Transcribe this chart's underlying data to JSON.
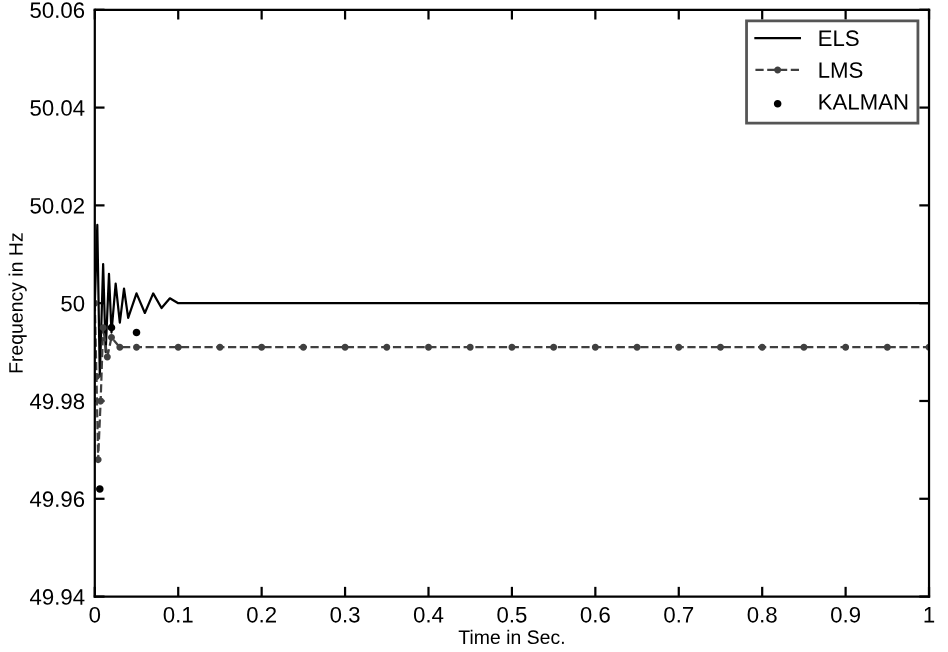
{
  "chart_data": {
    "type": "line",
    "xlabel": "Time in Sec.",
    "ylabel": "Frequency in Hz",
    "xlim": [
      0,
      1
    ],
    "ylim": [
      49.94,
      50.06
    ],
    "xticks": [
      0,
      0.1,
      0.2,
      0.3,
      0.4,
      0.5,
      0.6,
      0.7,
      0.8,
      0.9,
      1
    ],
    "yticks": [
      49.94,
      49.96,
      49.98,
      50,
      50.02,
      50.04,
      50.06
    ],
    "grid": false,
    "legend": "top right",
    "series": [
      {
        "name": "ELS",
        "color": "#000000",
        "line_style": "solid",
        "marker": "none",
        "x": [
          0,
          0.003,
          0.006,
          0.01,
          0.013,
          0.017,
          0.02,
          0.025,
          0.03,
          0.035,
          0.04,
          0.05,
          0.06,
          0.07,
          0.08,
          0.09,
          0.1,
          0.2,
          0.3,
          0.4,
          0.5,
          0.6,
          0.7,
          0.8,
          0.9,
          1
        ],
        "values": [
          50,
          50.016,
          49.985,
          50.008,
          49.99,
          50.006,
          49.994,
          50.004,
          49.996,
          50.003,
          49.997,
          50.002,
          49.998,
          50.002,
          49.999,
          50.001,
          50,
          50,
          50,
          50,
          50,
          50,
          50,
          50,
          50,
          50
        ]
      },
      {
        "name": "LMS",
        "color": "#404040",
        "line_style": "dashed",
        "marker": "circle",
        "x": [
          0,
          0.002,
          0.004,
          0.007,
          0.01,
          0.015,
          0.02,
          0.03,
          0.05,
          0.1,
          0.15,
          0.2,
          0.25,
          0.3,
          0.35,
          0.4,
          0.45,
          0.5,
          0.55,
          0.6,
          0.65,
          0.7,
          0.75,
          0.8,
          0.85,
          0.9,
          0.95,
          1
        ],
        "values": [
          50,
          49.985,
          49.968,
          49.98,
          49.995,
          49.989,
          49.993,
          49.991,
          49.991,
          49.991,
          49.991,
          49.991,
          49.991,
          49.991,
          49.991,
          49.991,
          49.991,
          49.991,
          49.991,
          49.991,
          49.991,
          49.991,
          49.991,
          49.991,
          49.991,
          49.991,
          49.991,
          49.991
        ]
      },
      {
        "name": "KALMAN",
        "type": "scatter",
        "color": "#000000",
        "marker": "circle",
        "x": [
          0.006,
          0.02,
          0.05
        ],
        "values": [
          49.962,
          49.995,
          49.994
        ]
      }
    ]
  }
}
